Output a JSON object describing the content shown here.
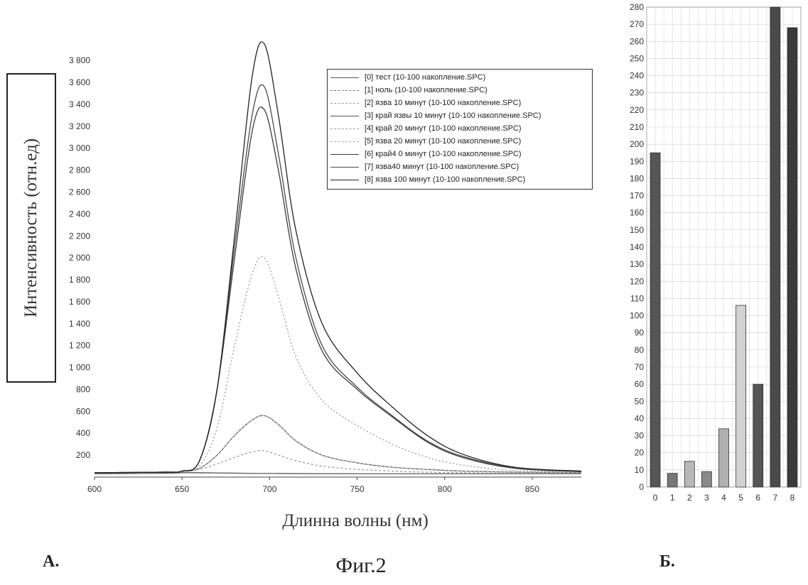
{
  "figure": {
    "caption": "Фиг.2",
    "panel_a_label": "А.",
    "panel_b_label": "Б."
  },
  "chart_data": [
    {
      "type": "line",
      "panel": "А.",
      "xlabel": "Длинна волны (нм)",
      "ylabel": "Интенсивность (отн.ед)",
      "xlim": [
        600,
        878
      ],
      "ylim": [
        0,
        3950
      ],
      "x_ticks": [
        600,
        650,
        700,
        750,
        800,
        850
      ],
      "x_tick_labels": [
        "600",
        "650",
        "700",
        "750",
        "800",
        "850"
      ],
      "y_ticks": [
        200,
        400,
        600,
        800,
        1000,
        1200,
        1400,
        1600,
        1800,
        2000,
        2200,
        2400,
        2600,
        2800,
        3000,
        3200,
        3400,
        3600,
        3800
      ],
      "y_tick_labels": [
        "200",
        "400",
        "600",
        "800",
        "1 000",
        "1 200",
        "1 400",
        "1 600",
        "1 800",
        "2 000",
        "2 200",
        "2 400",
        "2 600",
        "2 800",
        "3 000",
        "3 200",
        "3 400",
        "3 600",
        "3 800"
      ],
      "grid": false,
      "legend_position": "top-right",
      "x": [
        600,
        640,
        650,
        660,
        670,
        680,
        690,
        697,
        705,
        715,
        730,
        750,
        770,
        790,
        810,
        840,
        878
      ],
      "series": [
        {
          "name": "[0] тест (10-100 накопление.SPC)",
          "color": "#555555",
          "dash": "",
          "values": [
            30,
            35,
            40,
            40,
            38,
            36,
            34,
            33,
            33,
            32,
            31,
            30,
            30,
            30,
            30,
            30,
            30
          ]
        },
        {
          "name": "[1] ноль (10-100 накопление.SPC)",
          "color": "#777777",
          "dash": "2,2",
          "values": [
            30,
            35,
            38,
            37,
            36,
            35,
            34,
            33,
            32,
            31,
            30,
            30,
            30,
            30,
            30,
            30,
            30
          ]
        },
        {
          "name": "[2] язва 10 минут (10-100 накопление.SPC)",
          "color": "#999999",
          "dash": "3,3",
          "values": [
            40,
            45,
            50,
            70,
            120,
            180,
            230,
            240,
            200,
            150,
            100,
            70,
            55,
            45,
            40,
            35,
            35
          ]
        },
        {
          "name": "[3] край язвы 10 минут (10-100 накопление.SPC)",
          "color": "#555555",
          "dash": "",
          "values": [
            40,
            45,
            50,
            80,
            200,
            380,
            520,
            560,
            480,
            330,
            200,
            130,
            90,
            70,
            55,
            45,
            40
          ]
        },
        {
          "name": "[4] край 20 минут (10-100 накопление.SPC)",
          "color": "#999999",
          "dash": "2,3",
          "values": [
            40,
            45,
            50,
            100,
            450,
            1200,
            1850,
            2000,
            1650,
            1100,
            700,
            470,
            300,
            180,
            110,
            60,
            50
          ]
        },
        {
          "name": "[5] язва 20 минут (10-100 накопление.SPC)",
          "color": "#aaaaaa",
          "dash": "4,2",
          "values": [
            40,
            45,
            50,
            80,
            200,
            380,
            520,
            560,
            480,
            330,
            200,
            130,
            90,
            70,
            55,
            45,
            40
          ]
        },
        {
          "name": "[6] край4 0 минут (10-100 накопление.SPC)",
          "color": "#3a3a3a",
          "dash": "",
          "values": [
            40,
            45,
            55,
            150,
            800,
            2000,
            3150,
            3350,
            2800,
            1900,
            1150,
            800,
            550,
            320,
            180,
            80,
            50
          ]
        },
        {
          "name": "[7] язва40 минут (10-100 накопление.SPC)",
          "color": "#4a4a4a",
          "dash": "",
          "values": [
            40,
            45,
            55,
            150,
            800,
            2100,
            3300,
            3560,
            2950,
            2000,
            1200,
            820,
            560,
            330,
            190,
            85,
            50
          ]
        },
        {
          "name": "[8] язва 100 минут (10-100 накопление.SPC)",
          "color": "#222222",
          "dash": "",
          "values": [
            40,
            45,
            55,
            150,
            800,
            2200,
            3650,
            3950,
            3300,
            2250,
            1400,
            950,
            640,
            380,
            210,
            90,
            55
          ]
        }
      ]
    },
    {
      "type": "bar",
      "panel": "Б.",
      "categories": [
        "0",
        "1",
        "2",
        "3",
        "4",
        "5",
        "6",
        "7",
        "8"
      ],
      "values": [
        195,
        8,
        15,
        9,
        34,
        106,
        60,
        280,
        268
      ],
      "colors": [
        "#555555",
        "#777777",
        "#b8b8b8",
        "#8a8a8a",
        "#b0b0b0",
        "#d2d2d2",
        "#555555",
        "#4a4a4a",
        "#3a3a3a"
      ],
      "ylim": [
        0,
        280
      ],
      "y_ticks": [
        0,
        10,
        20,
        30,
        40,
        50,
        60,
        70,
        80,
        90,
        100,
        110,
        120,
        130,
        140,
        150,
        160,
        170,
        180,
        190,
        200,
        210,
        220,
        230,
        240,
        250,
        260,
        270,
        280
      ],
      "grid": true,
      "xlabel": "",
      "ylabel": ""
    }
  ]
}
